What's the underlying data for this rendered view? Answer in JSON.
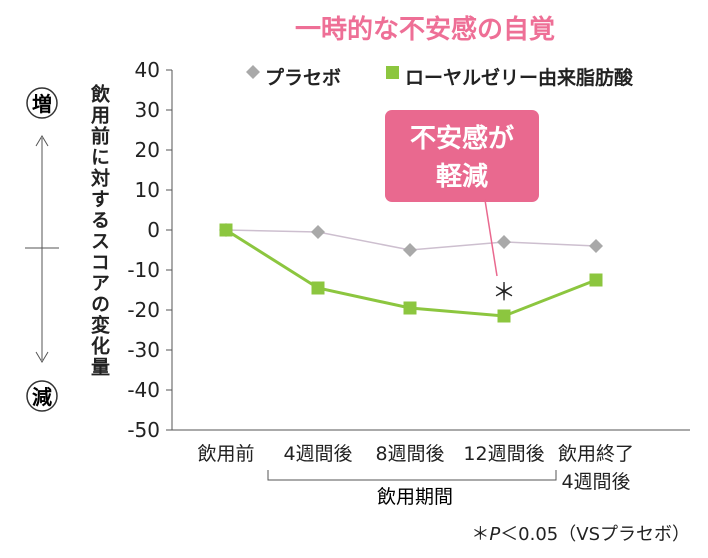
{
  "chart_data": {
    "type": "line",
    "title": "一時的な不安感の自覚",
    "ylabel": "飲用前に対するスコアの変化量",
    "ylim": [
      -50,
      40
    ],
    "yticks": [
      40,
      30,
      20,
      10,
      0,
      -10,
      -20,
      -30,
      -40,
      -50
    ],
    "categories": [
      "飲用前",
      "4週間後",
      "8週間後",
      "12週間後",
      "飲用終了\n4週間後"
    ],
    "category_lines": [
      [
        "飲用前"
      ],
      [
        "4週間後"
      ],
      [
        "8週間後"
      ],
      [
        "12週間後"
      ],
      [
        "飲用終了",
        "4週間後"
      ]
    ],
    "period_label": "飲用期間",
    "series": [
      {
        "name": "プラセボ",
        "marker": "diamond",
        "color": "#a9a9a9",
        "line_color": "#cdbfcf",
        "values": [
          0,
          -0.5,
          -5,
          -3,
          -4
        ]
      },
      {
        "name": "ローヤルゼリー由来脂肪酸",
        "marker": "square",
        "color": "#8cc63f",
        "line_color": "#8cc63f",
        "values": [
          0,
          -14.5,
          -19.5,
          -21.5,
          -12.5
        ]
      }
    ],
    "legend_position": "top",
    "grid": false,
    "annotation": {
      "lines": [
        "不安感が",
        "軽減"
      ],
      "target_index": 3,
      "color": "#e9698f"
    },
    "significance_mark": "＊",
    "footnote_parts": [
      "＊",
      "P",
      "＜0.05（VSプラセボ）"
    ],
    "scale_labels": {
      "up": "増",
      "down": "減"
    },
    "colors": {
      "title": "#ee6f96",
      "axis": "#555555",
      "text": "#222222"
    }
  }
}
